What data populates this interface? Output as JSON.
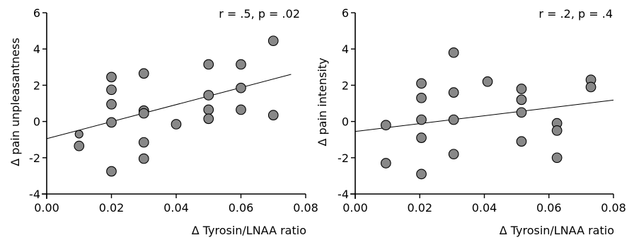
{
  "chart_data": [
    {
      "type": "scatter",
      "title": "",
      "xlabel": "Δ Tyrosin/LNAA ratio",
      "ylabel": "Δ pain unpleasantness",
      "annotation": "r = .5, p = .02",
      "xlim": [
        0,
        0.08
      ],
      "ylim": [
        -4,
        6
      ],
      "xticks": [
        "0.00",
        "0.02",
        "0.04",
        "0.06",
        "0.08"
      ],
      "yticks": [
        "-4",
        "-2",
        "0",
        "2",
        "4",
        "6"
      ],
      "grid": false,
      "marker_color": "#888888",
      "points": [
        {
          "x": 0.01,
          "y": -0.7,
          "small": true
        },
        {
          "x": 0.01,
          "y": -1.35
        },
        {
          "x": 0.02,
          "y": 2.45
        },
        {
          "x": 0.02,
          "y": 1.75
        },
        {
          "x": 0.02,
          "y": 0.95
        },
        {
          "x": 0.02,
          "y": -0.05
        },
        {
          "x": 0.02,
          "y": -2.75
        },
        {
          "x": 0.03,
          "y": 2.65
        },
        {
          "x": 0.03,
          "y": 0.6
        },
        {
          "x": 0.03,
          "y": 0.45
        },
        {
          "x": 0.03,
          "y": -1.15
        },
        {
          "x": 0.03,
          "y": -2.05
        },
        {
          "x": 0.04,
          "y": -0.15
        },
        {
          "x": 0.05,
          "y": 3.15
        },
        {
          "x": 0.05,
          "y": 1.45
        },
        {
          "x": 0.05,
          "y": 0.65
        },
        {
          "x": 0.05,
          "y": 0.15
        },
        {
          "x": 0.06,
          "y": 3.15
        },
        {
          "x": 0.06,
          "y": 1.85
        },
        {
          "x": 0.06,
          "y": 0.65
        },
        {
          "x": 0.07,
          "y": 4.45
        },
        {
          "x": 0.07,
          "y": 0.35
        }
      ],
      "fit_line": {
        "x": [
          0.0,
          0.0755
        ],
        "y": [
          -0.95,
          2.6
        ]
      }
    },
    {
      "type": "scatter",
      "title": "",
      "xlabel": "Δ Tyrosin/LNAA ratio",
      "ylabel": "Δ pain intensity",
      "annotation": "r = .2, p = .4",
      "xlim": [
        0,
        0.08
      ],
      "ylim": [
        -4,
        6
      ],
      "xticks": [
        "0.00",
        "0.02",
        "0.04",
        "0.06",
        "0.08"
      ],
      "yticks": [
        "-4",
        "-2",
        "0",
        "2",
        "4",
        "6"
      ],
      "grid": false,
      "marker_color": "#888888",
      "points": [
        {
          "x": 0.0095,
          "y": -0.2
        },
        {
          "x": 0.0095,
          "y": -2.3
        },
        {
          "x": 0.0205,
          "y": 2.1
        },
        {
          "x": 0.0205,
          "y": 1.3
        },
        {
          "x": 0.0205,
          "y": 0.1
        },
        {
          "x": 0.0205,
          "y": -0.9
        },
        {
          "x": 0.0205,
          "y": -2.9
        },
        {
          "x": 0.0305,
          "y": 3.8
        },
        {
          "x": 0.0305,
          "y": 1.6
        },
        {
          "x": 0.0305,
          "y": 0.1
        },
        {
          "x": 0.0305,
          "y": -1.8
        },
        {
          "x": 0.041,
          "y": 2.2
        },
        {
          "x": 0.0515,
          "y": 1.8
        },
        {
          "x": 0.0515,
          "y": 1.2
        },
        {
          "x": 0.0515,
          "y": 0.5
        },
        {
          "x": 0.0515,
          "y": -1.1
        },
        {
          "x": 0.0625,
          "y": -0.1
        },
        {
          "x": 0.0625,
          "y": -0.5
        },
        {
          "x": 0.0625,
          "y": -2.0
        },
        {
          "x": 0.073,
          "y": 2.3
        },
        {
          "x": 0.073,
          "y": 1.9
        }
      ],
      "fit_line": {
        "x": [
          0.0,
          0.08
        ],
        "y": [
          -0.55,
          1.18
        ]
      }
    }
  ]
}
